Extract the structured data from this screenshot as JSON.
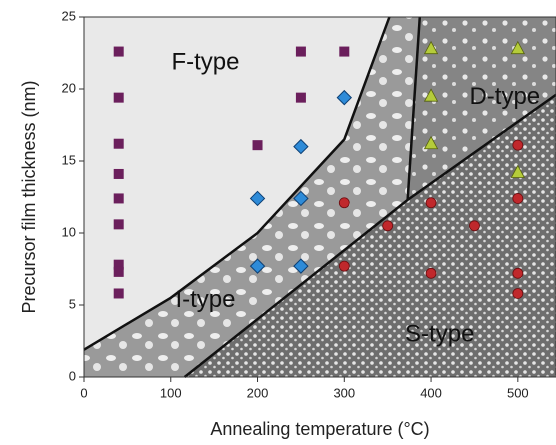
{
  "chart_data": {
    "type": "scatter",
    "x_label": "Annealing temperature (°C)",
    "y_label": "Precursor film thickness (nm)",
    "xlim": [
      0,
      544
    ],
    "ylim": [
      0,
      25
    ],
    "xticks": [
      0,
      100,
      200,
      300,
      400,
      500
    ],
    "yticks": [
      0,
      5,
      10,
      15,
      20,
      25
    ],
    "series": [
      {
        "marker": "square",
        "color": "#6b1f5c",
        "x": [
          40,
          40,
          40,
          40,
          40,
          40,
          40,
          40,
          40,
          250,
          250,
          300,
          200
        ],
        "y": [
          22.6,
          19.4,
          16.2,
          14.1,
          12.4,
          10.6,
          7.8,
          7.3,
          5.8,
          22.6,
          19.4,
          22.6,
          16.1
        ]
      },
      {
        "marker": "diamond",
        "color": "#2e8bd8",
        "x": [
          300,
          250,
          200,
          250,
          200,
          250
        ],
        "y": [
          19.4,
          16.0,
          12.4,
          12.4,
          7.7,
          7.7
        ]
      },
      {
        "marker": "circle",
        "color": "#c0282c",
        "x": [
          300,
          350,
          400,
          450,
          500,
          500,
          300,
          400,
          500,
          500
        ],
        "y": [
          12.1,
          10.5,
          12.1,
          10.5,
          12.4,
          16.1,
          7.7,
          7.2,
          7.2,
          5.8
        ]
      },
      {
        "marker": "triangle",
        "color": "#b5cc3a",
        "x": [
          400,
          500,
          400,
          400,
          500
        ],
        "y": [
          22.8,
          22.8,
          19.5,
          16.2,
          14.2
        ]
      }
    ],
    "boundaries": [
      {
        "x": [
          0,
          100,
          200,
          300,
          352
        ],
        "y": [
          1.9,
          5.5,
          10.0,
          16.5,
          25
        ]
      },
      {
        "x": [
          387,
          373
        ],
        "y": [
          25,
          12.3
        ]
      },
      {
        "x": [
          116,
          373,
          544
        ],
        "y": [
          0,
          12.3,
          19.6
        ]
      }
    ],
    "annotations": [
      {
        "text": "F-type",
        "x": 140,
        "y": 21.8
      },
      {
        "text": "D-type",
        "x": 485,
        "y": 19.4
      },
      {
        "text": "I-type",
        "x": 140,
        "y": 5.3
      },
      {
        "text": "S-type",
        "x": 410,
        "y": 2.9
      }
    ]
  }
}
